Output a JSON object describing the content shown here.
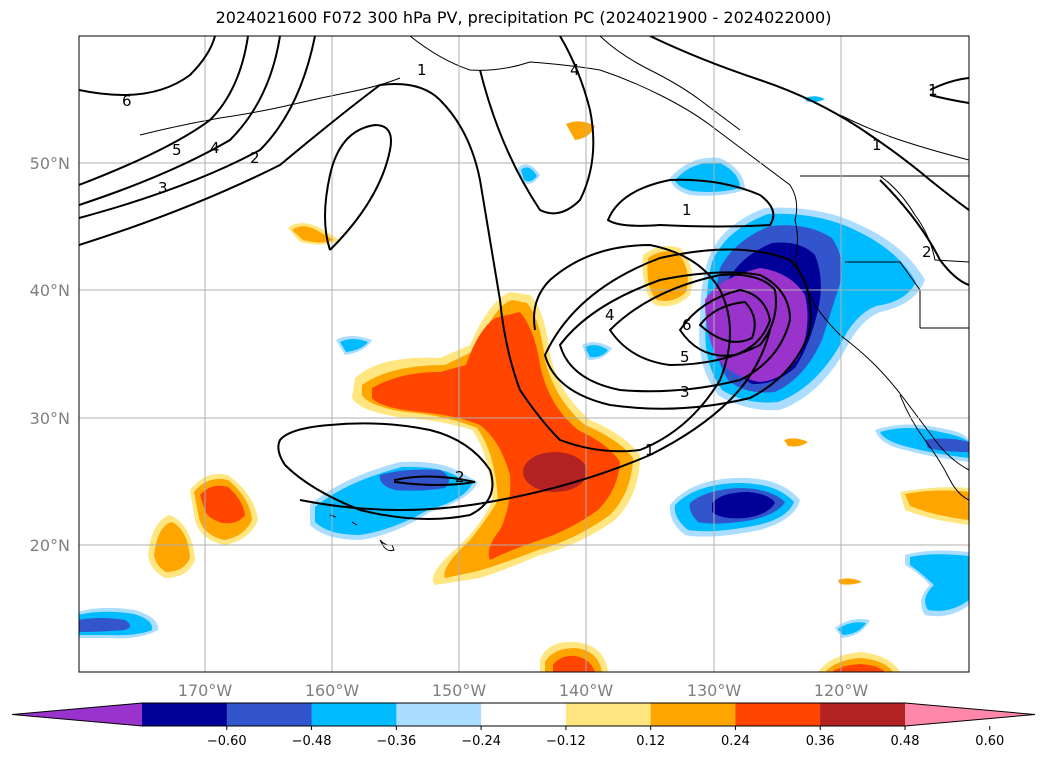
{
  "title": "2024021600 F072 300 hPa PV, precipitation PC (2024021900 - 2024022000)",
  "map": {
    "lat_labels": [
      "50°N",
      "40°N",
      "30°N",
      "20°N"
    ],
    "lon_labels": [
      "170°W",
      "160°W",
      "150°W",
      "140°W",
      "130°W",
      "120°W"
    ],
    "pv_contour_labels": [
      "6",
      "5",
      "4",
      "3",
      "2",
      "1",
      "4",
      "1",
      "2",
      "6",
      "5",
      "4",
      "3",
      "1",
      "2",
      "1",
      "1"
    ]
  },
  "colorbar": {
    "tick_labels": [
      "−0.60",
      "−0.48",
      "−0.36",
      "−0.24",
      "−0.12",
      "0.12",
      "0.24",
      "0.36",
      "0.48",
      "0.60"
    ],
    "colors": [
      "#9933cc",
      "#000099",
      "#3355cc",
      "#00bbff",
      "#aaddff",
      "#ffffff",
      "#ffe680",
      "#ffa500",
      "#ff4500",
      "#b22222",
      "#ff88aa"
    ]
  }
}
